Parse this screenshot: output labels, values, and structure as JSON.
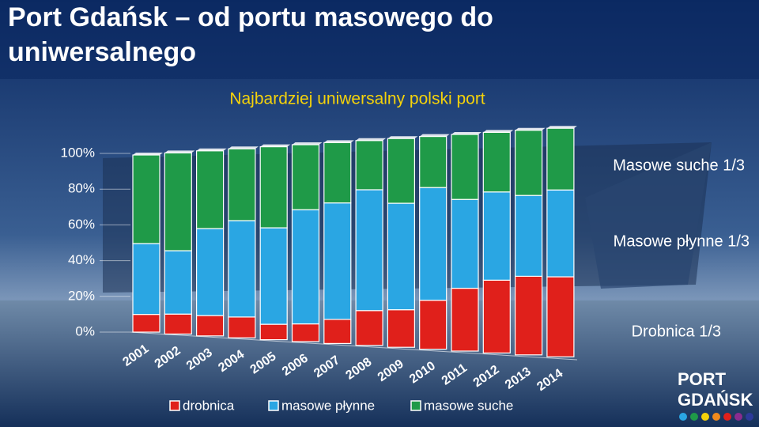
{
  "chart_data": {
    "type": "stacked_bar",
    "title": "Port Gdańsk – od portu masowego do uniwersalnego",
    "subtitle": "Najbardziej uniwersalny polski port",
    "categories": [
      "2001",
      "2002",
      "2003",
      "2004",
      "2005",
      "2006",
      "2007",
      "2008",
      "2009",
      "2010",
      "2011",
      "2012",
      "2013",
      "2014"
    ],
    "series": [
      {
        "name": "drobnica",
        "color": "#e0201b",
        "values": [
          10,
          11,
          11,
          11,
          8,
          9,
          12,
          17,
          18,
          23,
          29,
          33,
          35,
          35
        ]
      },
      {
        "name": "masowe płynne",
        "color": "#2aa6e3",
        "values": [
          40,
          35,
          47,
          51,
          50,
          58,
          58,
          59,
          51,
          53,
          41,
          40,
          36,
          38
        ]
      },
      {
        "name": "masowe suche",
        "color": "#1f9a48",
        "values": [
          50,
          54,
          42,
          38,
          42,
          33,
          30,
          24,
          31,
          24,
          30,
          27,
          29,
          27
        ]
      }
    ],
    "ylim": [
      0,
      100
    ],
    "yticks": [
      {
        "value": 0,
        "label": "0%"
      },
      {
        "value": 20,
        "label": "20%"
      },
      {
        "value": 40,
        "label": "40%"
      },
      {
        "value": 60,
        "label": "60%"
      },
      {
        "value": 80,
        "label": "80%"
      },
      {
        "value": 100,
        "label": "100%"
      }
    ],
    "annotations": [
      "Masowe suche 1/3",
      "Masowe płynne 1/3",
      "Drobnica 1/3"
    ],
    "logo": [
      "PORT",
      "GDAŃSK"
    ]
  }
}
